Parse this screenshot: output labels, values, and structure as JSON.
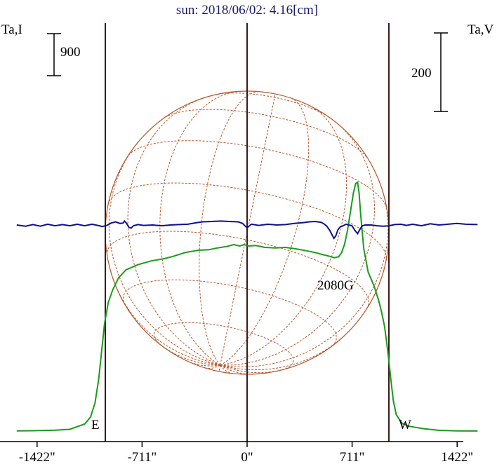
{
  "chart_data": {
    "type": "line",
    "title": "sun: 2018/06/02: 4.16[cm]",
    "ylabel_left": "Ta,I",
    "ylabel_right": "Ta,V",
    "xlim": [
      -1560,
      1560
    ],
    "xticks": [
      {
        "value": -1422,
        "label": "-1422\""
      },
      {
        "value": -711,
        "label": "-711\""
      },
      {
        "value": 0,
        "label": "0\""
      },
      {
        "value": 711,
        "label": "711\""
      },
      {
        "value": 1422,
        "label": "1422\""
      }
    ],
    "vertical_lines": [
      -960,
      0,
      960
    ],
    "limb_labels": {
      "east": "E",
      "west": "W"
    },
    "scale_bar_left": {
      "label": "900",
      "value": 900
    },
    "scale_bar_right": {
      "label": "200",
      "value": 200
    },
    "annotation": "2080G",
    "colors": {
      "intensity": "#1a9c1a",
      "polarization": "#101090",
      "disk": "#b5562a",
      "vertical": "#3a1a1a",
      "title": "#1a1a6e"
    },
    "series": [
      {
        "key": "intensity",
        "points": [
          [
            -1560,
            5
          ],
          [
            -1450,
            8
          ],
          [
            -1300,
            18
          ],
          [
            -1200,
            38
          ],
          [
            -1100,
            150
          ],
          [
            -1060,
            300
          ],
          [
            -1030,
            600
          ],
          [
            -1005,
            1100
          ],
          [
            -985,
            1700
          ],
          [
            -965,
            2300
          ],
          [
            -940,
            2750
          ],
          [
            -910,
            3020
          ],
          [
            -870,
            3280
          ],
          [
            -820,
            3450
          ],
          [
            -740,
            3560
          ],
          [
            -650,
            3640
          ],
          [
            -560,
            3690
          ],
          [
            -500,
            3740
          ],
          [
            -420,
            3820
          ],
          [
            -330,
            3870
          ],
          [
            -260,
            3880
          ],
          [
            -200,
            3920
          ],
          [
            -140,
            3950
          ],
          [
            -90,
            3990
          ],
          [
            -50,
            3960
          ],
          [
            -20,
            3990
          ],
          [
            10,
            3960
          ],
          [
            60,
            3970
          ],
          [
            120,
            3930
          ],
          [
            190,
            3920
          ],
          [
            260,
            3930
          ],
          [
            330,
            3900
          ],
          [
            400,
            3860
          ],
          [
            460,
            3820
          ],
          [
            520,
            3770
          ],
          [
            560,
            3740
          ],
          [
            590,
            3710
          ],
          [
            620,
            3730
          ],
          [
            640,
            3820
          ],
          [
            660,
            4000
          ],
          [
            680,
            4300
          ],
          [
            700,
            4700
          ],
          [
            720,
            5100
          ],
          [
            735,
            5300
          ],
          [
            748,
            5320
          ],
          [
            758,
            5100
          ],
          [
            770,
            4600
          ],
          [
            790,
            3900
          ],
          [
            820,
            3400
          ],
          [
            860,
            3100
          ],
          [
            890,
            2800
          ],
          [
            910,
            2550
          ],
          [
            930,
            2250
          ],
          [
            945,
            1900
          ],
          [
            960,
            1500
          ],
          [
            975,
            1050
          ],
          [
            990,
            650
          ],
          [
            1010,
            350
          ],
          [
            1050,
            160
          ],
          [
            1100,
            100
          ],
          [
            1200,
            50
          ],
          [
            1300,
            15
          ],
          [
            1420,
            5
          ],
          [
            1560,
            2
          ]
        ]
      },
      {
        "key": "polarization",
        "points": [
          [
            -1560,
            0
          ],
          [
            -1500,
            -3
          ],
          [
            -1450,
            1
          ],
          [
            -1400,
            -3
          ],
          [
            -1350,
            2
          ],
          [
            -1300,
            -2
          ],
          [
            -1250,
            1
          ],
          [
            -1200,
            -2
          ],
          [
            -1150,
            2
          ],
          [
            -1100,
            -2
          ],
          [
            -1050,
            2
          ],
          [
            -1000,
            -2
          ],
          [
            -980,
            -4
          ],
          [
            -950,
            -1
          ],
          [
            -920,
            5
          ],
          [
            -890,
            8
          ],
          [
            -860,
            4
          ],
          [
            -840,
            5
          ],
          [
            -830,
            10
          ],
          [
            -815,
            4
          ],
          [
            -800,
            -6
          ],
          [
            -785,
            -8
          ],
          [
            -770,
            -2
          ],
          [
            -740,
            1
          ],
          [
            -700,
            -1
          ],
          [
            -640,
            0
          ],
          [
            -580,
            -2
          ],
          [
            -520,
            0
          ],
          [
            -460,
            1
          ],
          [
            -400,
            2
          ],
          [
            -340,
            6
          ],
          [
            -300,
            8
          ],
          [
            -240,
            9
          ],
          [
            -180,
            10
          ],
          [
            -120,
            9
          ],
          [
            -60,
            8
          ],
          [
            -30,
            4
          ],
          [
            -15,
            -2
          ],
          [
            0,
            -7
          ],
          [
            15,
            -2
          ],
          [
            30,
            2
          ],
          [
            80,
            -1
          ],
          [
            140,
            2
          ],
          [
            200,
            0
          ],
          [
            260,
            1
          ],
          [
            320,
            4
          ],
          [
            380,
            6
          ],
          [
            420,
            8
          ],
          [
            460,
            9
          ],
          [
            500,
            7
          ],
          [
            520,
            3
          ],
          [
            540,
            -3
          ],
          [
            560,
            -14
          ],
          [
            575,
            -25
          ],
          [
            588,
            -34
          ],
          [
            600,
            -28
          ],
          [
            615,
            -12
          ],
          [
            630,
            -5
          ],
          [
            650,
            -2
          ],
          [
            670,
            2
          ],
          [
            690,
            0
          ],
          [
            710,
            -2
          ],
          [
            730,
            -14
          ],
          [
            748,
            -22
          ],
          [
            765,
            -10
          ],
          [
            780,
            -2
          ],
          [
            800,
            0
          ],
          [
            840,
            0
          ],
          [
            880,
            -2
          ],
          [
            920,
            -3
          ],
          [
            960,
            -2
          ],
          [
            1000,
            1
          ],
          [
            1040,
            2
          ],
          [
            1080,
            -1
          ],
          [
            1120,
            2
          ],
          [
            1180,
            -2
          ],
          [
            1240,
            3
          ],
          [
            1300,
            0
          ],
          [
            1360,
            2
          ],
          [
            1420,
            4
          ],
          [
            1480,
            2
          ],
          [
            1560,
            1
          ]
        ]
      }
    ]
  }
}
